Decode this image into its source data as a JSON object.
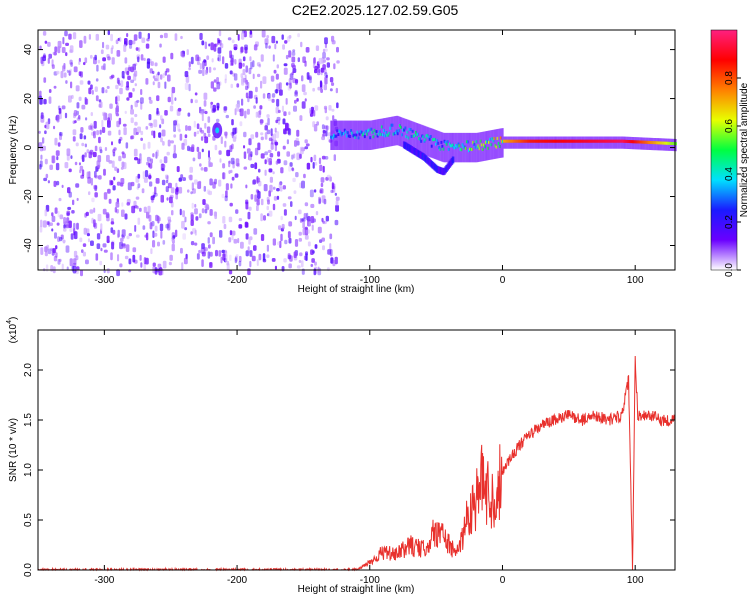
{
  "title": "C2E2.2025.127.02.59.G05",
  "colors": {
    "snr_line": "#e8302c",
    "spectrum_noise": "#8a2be2",
    "colormap": [
      "#ffffff",
      "#6a00ff",
      "#1a1aff",
      "#00e0ff",
      "#00ff40",
      "#e8ff00",
      "#ff8000",
      "#ff0000",
      "#ff2080"
    ]
  },
  "chart_data": [
    {
      "id": "spectrogram",
      "type": "heatmap",
      "xlabel": "Height of straight line (km)",
      "ylabel": "Frequency (Hz)",
      "xlim": [
        -350,
        130
      ],
      "ylim": [
        -50,
        48
      ],
      "xticks": [
        -300,
        -200,
        -100,
        0,
        100
      ],
      "yticks": [
        -40,
        -20,
        0,
        20,
        40
      ],
      "colorbar": {
        "label": "Normalized spectral amplitude",
        "range": [
          0,
          1
        ],
        "ticks": [
          "0.0",
          "0.2",
          "0.4",
          "0.6",
          "0.8"
        ]
      },
      "features": {
        "noise_region_x": [
          -350,
          -125
        ],
        "noise_amplitude": 0.15,
        "carrier_track": [
          {
            "x": -130,
            "y": 5,
            "amp": 0.35
          },
          {
            "x": -100,
            "y": 5,
            "amp": 0.45
          },
          {
            "x": -80,
            "y": 7,
            "amp": 0.45
          },
          {
            "x": -60,
            "y": 3,
            "amp": 0.45
          },
          {
            "x": -45,
            "y": 0,
            "amp": 0.45
          },
          {
            "x": -30,
            "y": 0,
            "amp": 0.5
          },
          {
            "x": -20,
            "y": 0,
            "amp": 0.6
          },
          {
            "x": 0,
            "y": 2,
            "amp": 0.7
          },
          {
            "x": 20,
            "y": 2,
            "amp": 0.85
          },
          {
            "x": 60,
            "y": 2,
            "amp": 0.9
          },
          {
            "x": 90,
            "y": 2,
            "amp": 0.95
          },
          {
            "x": 130,
            "y": 1,
            "amp": 0.55
          }
        ],
        "branch_track": [
          {
            "x": -75,
            "y": 0
          },
          {
            "x": -60,
            "y": -5
          },
          {
            "x": -50,
            "y": -10
          },
          {
            "x": -45,
            "y": -11
          },
          {
            "x": -38,
            "y": -6
          }
        ]
      }
    },
    {
      "id": "snr",
      "type": "line",
      "xlabel": "Height of straight line (km)",
      "ylabel": "SNR (10 * v/v)",
      "y_multiplier": "(x10",
      "y_multiplier_exp": "4",
      "xlim": [
        -350,
        130
      ],
      "ylim": [
        0,
        24000
      ],
      "xticks": [
        -300,
        -200,
        -100,
        0,
        100
      ],
      "yticks": [
        "0.0",
        "0.5",
        "1.0",
        "1.5",
        "2.0"
      ],
      "ytick_values": [
        0,
        5000,
        10000,
        15000,
        20000
      ],
      "series": [
        {
          "x": [
            -350,
            -300,
            -250,
            -200,
            -150,
            -110,
            -100,
            -90,
            -80,
            -70,
            -60,
            -50,
            -45,
            -40,
            -35,
            -30,
            -25,
            -20,
            -15,
            -10,
            -5,
            0,
            10,
            20,
            30,
            40,
            50,
            60,
            70,
            80,
            90,
            95,
            98,
            100,
            102,
            110,
            120,
            130
          ],
          "y": [
            0,
            0,
            0,
            0,
            0,
            0,
            800,
            1800,
            1500,
            2500,
            2000,
            4000,
            3500,
            2500,
            1500,
            3500,
            6000,
            7000,
            9000,
            7500,
            7000,
            10000,
            12000,
            13500,
            14500,
            15000,
            15500,
            15000,
            15500,
            15000,
            15500,
            19000,
            0,
            21000,
            15500,
            15500,
            15000,
            15000
          ]
        }
      ]
    }
  ]
}
